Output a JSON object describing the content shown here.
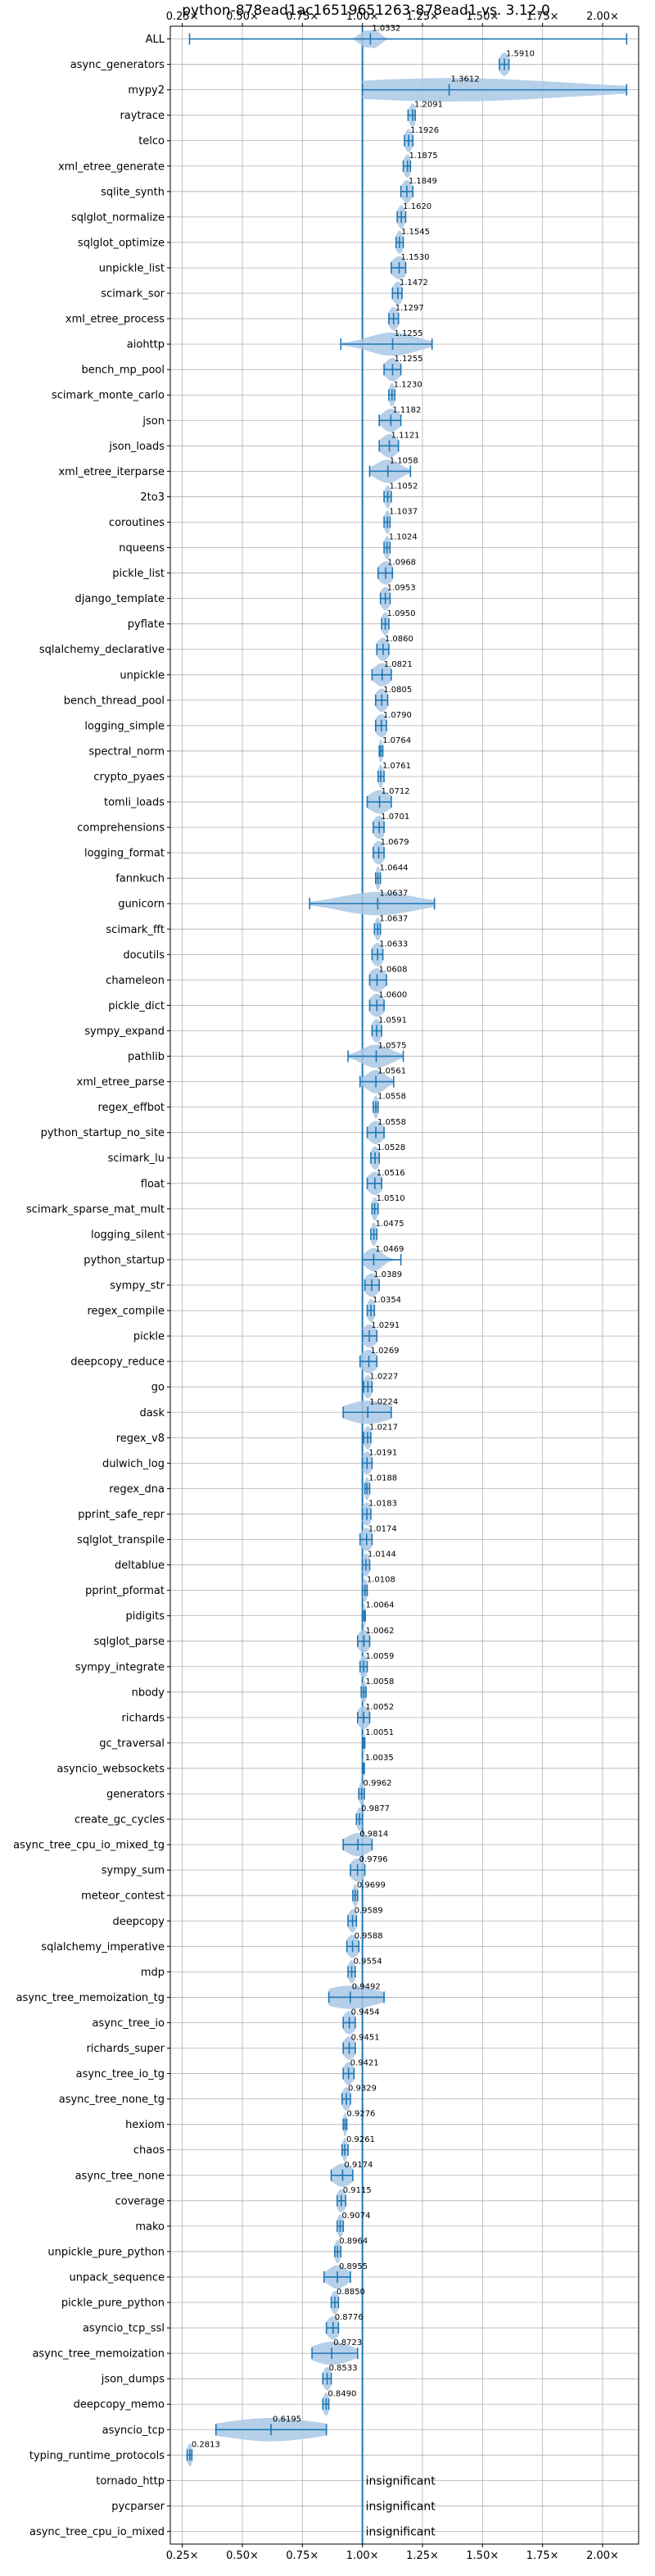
{
  "chart_data": {
    "type": "violin",
    "title": "python-878ead1ac16519651263-878ead1 vs. 3.12.0",
    "xlabel": "",
    "ylabel": "",
    "xlim": [
      0.2,
      2.15
    ],
    "x_ticks": [
      {
        "value": 0.25,
        "label": "0.25×"
      },
      {
        "value": 0.5,
        "label": "0.50×"
      },
      {
        "value": 0.75,
        "label": "0.75×"
      },
      {
        "value": 1.0,
        "label": "1.00×"
      },
      {
        "value": 1.25,
        "label": "1.25×"
      },
      {
        "value": 1.5,
        "label": "1.50×"
      },
      {
        "value": 1.75,
        "label": "1.75×"
      },
      {
        "value": 2.0,
        "label": "2.00×"
      }
    ],
    "reference_line": 1.0,
    "grid": true,
    "colors": {
      "violin_fill": "#a9c8e5",
      "violin_line": "#1f77b4",
      "reference_line": "#1f77b4",
      "grid": "#b0b0b0"
    },
    "benchmarks": [
      {
        "name": "ALL",
        "label": "1.0332",
        "median": 1.0332,
        "min": 0.28,
        "max": 2.1,
        "spread": 0.03
      },
      {
        "name": "async_generators",
        "label": "1.5910",
        "median": 1.591,
        "min": 1.57,
        "max": 1.61,
        "spread": 0.02
      },
      {
        "name": "mypy2",
        "label": "1.3612",
        "median": 1.3612,
        "min": 1.0,
        "max": 2.1,
        "spread": 0.5
      },
      {
        "name": "raytrace",
        "label": "1.2091",
        "median": 1.2091,
        "min": 1.19,
        "max": 1.22,
        "spread": 0.015
      },
      {
        "name": "telco",
        "label": "1.1926",
        "median": 1.1926,
        "min": 1.175,
        "max": 1.21,
        "spread": 0.015
      },
      {
        "name": "xml_etree_generate",
        "label": "1.1875",
        "median": 1.1875,
        "min": 1.17,
        "max": 1.2,
        "spread": 0.015
      },
      {
        "name": "sqlite_synth",
        "label": "1.1849",
        "median": 1.1849,
        "min": 1.16,
        "max": 1.21,
        "spread": 0.02
      },
      {
        "name": "sqlglot_normalize",
        "label": "1.1620",
        "median": 1.162,
        "min": 1.145,
        "max": 1.18,
        "spread": 0.015
      },
      {
        "name": "sqlglot_optimize",
        "label": "1.1545",
        "median": 1.1545,
        "min": 1.14,
        "max": 1.17,
        "spread": 0.015
      },
      {
        "name": "unpickle_list",
        "label": "1.1530",
        "median": 1.153,
        "min": 1.12,
        "max": 1.18,
        "spread": 0.03
      },
      {
        "name": "scimark_sor",
        "label": "1.1472",
        "median": 1.1472,
        "min": 1.125,
        "max": 1.165,
        "spread": 0.02
      },
      {
        "name": "xml_etree_process",
        "label": "1.1297",
        "median": 1.1297,
        "min": 1.11,
        "max": 1.15,
        "spread": 0.02
      },
      {
        "name": "aiohttp",
        "label": "1.1255",
        "median": 1.1255,
        "min": 0.91,
        "max": 1.29,
        "spread": 0.1
      },
      {
        "name": "bench_mp_pool",
        "label": "1.1255",
        "median": 1.1255,
        "min": 1.09,
        "max": 1.16,
        "spread": 0.03
      },
      {
        "name": "scimark_monte_carlo",
        "label": "1.1230",
        "median": 1.123,
        "min": 1.11,
        "max": 1.135,
        "spread": 0.012
      },
      {
        "name": "json",
        "label": "1.1182",
        "median": 1.1182,
        "min": 1.07,
        "max": 1.16,
        "spread": 0.035
      },
      {
        "name": "json_loads",
        "label": "1.1121",
        "median": 1.1121,
        "min": 1.07,
        "max": 1.15,
        "spread": 0.035
      },
      {
        "name": "xml_etree_iterparse",
        "label": "1.1058",
        "median": 1.1058,
        "min": 1.03,
        "max": 1.2,
        "spread": 0.05
      },
      {
        "name": "2to3",
        "label": "1.1052",
        "median": 1.1052,
        "min": 1.09,
        "max": 1.12,
        "spread": 0.012
      },
      {
        "name": "coroutines",
        "label": "1.1037",
        "median": 1.1037,
        "min": 1.09,
        "max": 1.115,
        "spread": 0.012
      },
      {
        "name": "nqueens",
        "label": "1.1024",
        "median": 1.1024,
        "min": 1.09,
        "max": 1.115,
        "spread": 0.012
      },
      {
        "name": "pickle_list",
        "label": "1.0968",
        "median": 1.0968,
        "min": 1.065,
        "max": 1.125,
        "spread": 0.03
      },
      {
        "name": "django_template",
        "label": "1.0953",
        "median": 1.0953,
        "min": 1.075,
        "max": 1.115,
        "spread": 0.02
      },
      {
        "name": "pyflate",
        "label": "1.0950",
        "median": 1.095,
        "min": 1.08,
        "max": 1.11,
        "spread": 0.015
      },
      {
        "name": "sqlalchemy_declarative",
        "label": "1.0860",
        "median": 1.086,
        "min": 1.06,
        "max": 1.11,
        "spread": 0.025
      },
      {
        "name": "unpickle",
        "label": "1.0821",
        "median": 1.0821,
        "min": 1.04,
        "max": 1.12,
        "spread": 0.035
      },
      {
        "name": "bench_thread_pool",
        "label": "1.0805",
        "median": 1.0805,
        "min": 1.055,
        "max": 1.105,
        "spread": 0.025
      },
      {
        "name": "logging_simple",
        "label": "1.0790",
        "median": 1.079,
        "min": 1.055,
        "max": 1.1,
        "spread": 0.025
      },
      {
        "name": "spectral_norm",
        "label": "1.0764",
        "median": 1.0764,
        "min": 1.07,
        "max": 1.085,
        "spread": 0.008
      },
      {
        "name": "crypto_pyaes",
        "label": "1.0761",
        "median": 1.0761,
        "min": 1.065,
        "max": 1.09,
        "spread": 0.01
      },
      {
        "name": "tomli_loads",
        "label": "1.0712",
        "median": 1.0712,
        "min": 1.02,
        "max": 1.12,
        "spread": 0.045
      },
      {
        "name": "comprehensions",
        "label": "1.0701",
        "median": 1.0701,
        "min": 1.045,
        "max": 1.09,
        "spread": 0.025
      },
      {
        "name": "logging_format",
        "label": "1.0679",
        "median": 1.0679,
        "min": 1.045,
        "max": 1.09,
        "spread": 0.025
      },
      {
        "name": "fannkuch",
        "label": "1.0644",
        "median": 1.0644,
        "min": 1.055,
        "max": 1.075,
        "spread": 0.01
      },
      {
        "name": "gunicorn",
        "label": "1.0637",
        "median": 1.0637,
        "min": 0.78,
        "max": 1.3,
        "spread": 0.15
      },
      {
        "name": "scimark_fft",
        "label": "1.0637",
        "median": 1.0637,
        "min": 1.05,
        "max": 1.075,
        "spread": 0.012
      },
      {
        "name": "docutils",
        "label": "1.0633",
        "median": 1.0633,
        "min": 1.04,
        "max": 1.085,
        "spread": 0.025
      },
      {
        "name": "chameleon",
        "label": "1.0608",
        "median": 1.0608,
        "min": 1.03,
        "max": 1.1,
        "spread": 0.035
      },
      {
        "name": "pickle_dict",
        "label": "1.0600",
        "median": 1.06,
        "min": 1.03,
        "max": 1.09,
        "spread": 0.03
      },
      {
        "name": "sympy_expand",
        "label": "1.0591",
        "median": 1.0591,
        "min": 1.04,
        "max": 1.08,
        "spread": 0.02
      },
      {
        "name": "pathlib",
        "label": "1.0575",
        "median": 1.0575,
        "min": 0.94,
        "max": 1.17,
        "spread": 0.06
      },
      {
        "name": "xml_etree_parse",
        "label": "1.0561",
        "median": 1.0561,
        "min": 0.99,
        "max": 1.13,
        "spread": 0.04
      },
      {
        "name": "regex_effbot",
        "label": "1.0558",
        "median": 1.0558,
        "min": 1.045,
        "max": 1.065,
        "spread": 0.01
      },
      {
        "name": "python_startup_no_site",
        "label": "1.0558",
        "median": 1.0558,
        "min": 1.02,
        "max": 1.09,
        "spread": 0.03
      },
      {
        "name": "scimark_lu",
        "label": "1.0528",
        "median": 1.0528,
        "min": 1.035,
        "max": 1.07,
        "spread": 0.018
      },
      {
        "name": "float",
        "label": "1.0516",
        "median": 1.0516,
        "min": 1.02,
        "max": 1.08,
        "spread": 0.03
      },
      {
        "name": "scimark_sparse_mat_mult",
        "label": "1.0510",
        "median": 1.051,
        "min": 1.04,
        "max": 1.065,
        "spread": 0.012
      },
      {
        "name": "logging_silent",
        "label": "1.0475",
        "median": 1.0475,
        "min": 1.035,
        "max": 1.06,
        "spread": 0.012
      },
      {
        "name": "python_startup",
        "label": "1.0469",
        "median": 1.0469,
        "min": 1.0,
        "max": 1.16,
        "spread": 0.035
      },
      {
        "name": "sympy_str",
        "label": "1.0389",
        "median": 1.0389,
        "min": 1.01,
        "max": 1.07,
        "spread": 0.03
      },
      {
        "name": "regex_compile",
        "label": "1.0354",
        "median": 1.0354,
        "min": 1.02,
        "max": 1.05,
        "spread": 0.015
      },
      {
        "name": "pickle",
        "label": "1.0291",
        "median": 1.0291,
        "min": 1.0,
        "max": 1.06,
        "spread": 0.03
      },
      {
        "name": "deepcopy_reduce",
        "label": "1.0269",
        "median": 1.0269,
        "min": 0.99,
        "max": 1.06,
        "spread": 0.035
      },
      {
        "name": "go",
        "label": "1.0227",
        "median": 1.0227,
        "min": 1.005,
        "max": 1.04,
        "spread": 0.018
      },
      {
        "name": "dask",
        "label": "1.0224",
        "median": 1.0224,
        "min": 0.92,
        "max": 1.12,
        "spread": 0.09
      },
      {
        "name": "regex_v8",
        "label": "1.0217",
        "median": 1.0217,
        "min": 1.005,
        "max": 1.035,
        "spread": 0.015
      },
      {
        "name": "dulwich_log",
        "label": "1.0191",
        "median": 1.0191,
        "min": 1.0,
        "max": 1.04,
        "spread": 0.02
      },
      {
        "name": "regex_dna",
        "label": "1.0188",
        "median": 1.0188,
        "min": 1.01,
        "max": 1.03,
        "spread": 0.01
      },
      {
        "name": "pprint_safe_repr",
        "label": "1.0183",
        "median": 1.0183,
        "min": 1.0,
        "max": 1.035,
        "spread": 0.02
      },
      {
        "name": "sqlglot_transpile",
        "label": "1.0174",
        "median": 1.0174,
        "min": 0.99,
        "max": 1.04,
        "spread": 0.025
      },
      {
        "name": "deltablue",
        "label": "1.0144",
        "median": 1.0144,
        "min": 1.0,
        "max": 1.03,
        "spread": 0.015
      },
      {
        "name": "pprint_pformat",
        "label": "1.0108",
        "median": 1.0108,
        "min": 1.0,
        "max": 1.02,
        "spread": 0.01
      },
      {
        "name": "pidigits",
        "label": "1.0064",
        "median": 1.0064,
        "min": 1.0,
        "max": 1.012,
        "spread": 0.006
      },
      {
        "name": "sqlglot_parse",
        "label": "1.0062",
        "median": 1.0062,
        "min": 0.98,
        "max": 1.03,
        "spread": 0.025
      },
      {
        "name": "sympy_integrate",
        "label": "1.0059",
        "median": 1.0059,
        "min": 0.99,
        "max": 1.02,
        "spread": 0.015
      },
      {
        "name": "nbody",
        "label": "1.0058",
        "median": 1.0058,
        "min": 0.995,
        "max": 1.015,
        "spread": 0.01
      },
      {
        "name": "richards",
        "label": "1.0052",
        "median": 1.0052,
        "min": 0.98,
        "max": 1.03,
        "spread": 0.025
      },
      {
        "name": "gc_traversal",
        "label": "1.0051",
        "median": 1.0051,
        "min": 1.0,
        "max": 1.01,
        "spread": 0.005
      },
      {
        "name": "asyncio_websockets",
        "label": "1.0035",
        "median": 1.0035,
        "min": 1.0,
        "max": 1.008,
        "spread": 0.004
      },
      {
        "name": "generators",
        "label": "0.9962",
        "median": 0.9962,
        "min": 0.985,
        "max": 1.008,
        "spread": 0.01
      },
      {
        "name": "create_gc_cycles",
        "label": "0.9877",
        "median": 0.9877,
        "min": 0.975,
        "max": 1.0,
        "spread": 0.012
      },
      {
        "name": "async_tree_cpu_io_mixed_tg",
        "label": "0.9814",
        "median": 0.9814,
        "min": 0.92,
        "max": 1.04,
        "spread": 0.05
      },
      {
        "name": "sympy_sum",
        "label": "0.9796",
        "median": 0.9796,
        "min": 0.95,
        "max": 1.01,
        "spread": 0.03
      },
      {
        "name": "meteor_contest",
        "label": "0.9699",
        "median": 0.9699,
        "min": 0.96,
        "max": 0.98,
        "spread": 0.01
      },
      {
        "name": "deepcopy",
        "label": "0.9589",
        "median": 0.9589,
        "min": 0.94,
        "max": 0.975,
        "spread": 0.018
      },
      {
        "name": "sqlalchemy_imperative",
        "label": "0.9588",
        "median": 0.9588,
        "min": 0.935,
        "max": 0.985,
        "spread": 0.025
      },
      {
        "name": "mdp",
        "label": "0.9554",
        "median": 0.9554,
        "min": 0.94,
        "max": 0.97,
        "spread": 0.015
      },
      {
        "name": "async_tree_memoization_tg",
        "label": "0.9492",
        "median": 0.9492,
        "min": 0.86,
        "max": 1.09,
        "spread": 0.11
      },
      {
        "name": "async_tree_io",
        "label": "0.9454",
        "median": 0.9454,
        "min": 0.92,
        "max": 0.97,
        "spread": 0.025
      },
      {
        "name": "richards_super",
        "label": "0.9451",
        "median": 0.9451,
        "min": 0.92,
        "max": 0.97,
        "spread": 0.025
      },
      {
        "name": "async_tree_io_tg",
        "label": "0.9421",
        "median": 0.9421,
        "min": 0.92,
        "max": 0.965,
        "spread": 0.02
      },
      {
        "name": "async_tree_none_tg",
        "label": "0.9329",
        "median": 0.9329,
        "min": 0.915,
        "max": 0.95,
        "spread": 0.018
      },
      {
        "name": "hexiom",
        "label": "0.9276",
        "median": 0.9276,
        "min": 0.92,
        "max": 0.935,
        "spread": 0.008
      },
      {
        "name": "chaos",
        "label": "0.9261",
        "median": 0.9261,
        "min": 0.915,
        "max": 0.94,
        "spread": 0.01
      },
      {
        "name": "async_tree_none",
        "label": "0.9174",
        "median": 0.9174,
        "min": 0.87,
        "max": 0.96,
        "spread": 0.04
      },
      {
        "name": "coverage",
        "label": "0.9115",
        "median": 0.9115,
        "min": 0.895,
        "max": 0.93,
        "spread": 0.018
      },
      {
        "name": "mako",
        "label": "0.9074",
        "median": 0.9074,
        "min": 0.895,
        "max": 0.92,
        "spread": 0.012
      },
      {
        "name": "unpickle_pure_python",
        "label": "0.8964",
        "median": 0.8964,
        "min": 0.885,
        "max": 0.91,
        "spread": 0.012
      },
      {
        "name": "unpack_sequence",
        "label": "0.8955",
        "median": 0.8955,
        "min": 0.84,
        "max": 0.95,
        "spread": 0.04
      },
      {
        "name": "pickle_pure_python",
        "label": "0.8850",
        "median": 0.885,
        "min": 0.87,
        "max": 0.9,
        "spread": 0.015
      },
      {
        "name": "asyncio_tcp_ssl",
        "label": "0.8776",
        "median": 0.8776,
        "min": 0.85,
        "max": 0.9,
        "spread": 0.025
      },
      {
        "name": "async_tree_memoization",
        "label": "0.8723",
        "median": 0.8723,
        "min": 0.79,
        "max": 0.98,
        "spread": 0.08
      },
      {
        "name": "json_dumps",
        "label": "0.8533",
        "median": 0.8533,
        "min": 0.835,
        "max": 0.87,
        "spread": 0.018
      },
      {
        "name": "deepcopy_memo",
        "label": "0.8490",
        "median": 0.849,
        "min": 0.835,
        "max": 0.86,
        "spread": 0.012
      },
      {
        "name": "asyncio_tcp",
        "label": "0.6195",
        "median": 0.6195,
        "min": 0.39,
        "max": 0.85,
        "spread": 0.2
      },
      {
        "name": "typing_runtime_protocols",
        "label": "0.2813",
        "median": 0.2813,
        "min": 0.27,
        "max": 0.29,
        "spread": 0.01
      },
      {
        "name": "tornado_http",
        "label": "insignificant",
        "insignificant": true
      },
      {
        "name": "pycparser",
        "label": "insignificant",
        "insignificant": true
      },
      {
        "name": "async_tree_cpu_io_mixed",
        "label": "insignificant",
        "insignificant": true
      }
    ]
  }
}
